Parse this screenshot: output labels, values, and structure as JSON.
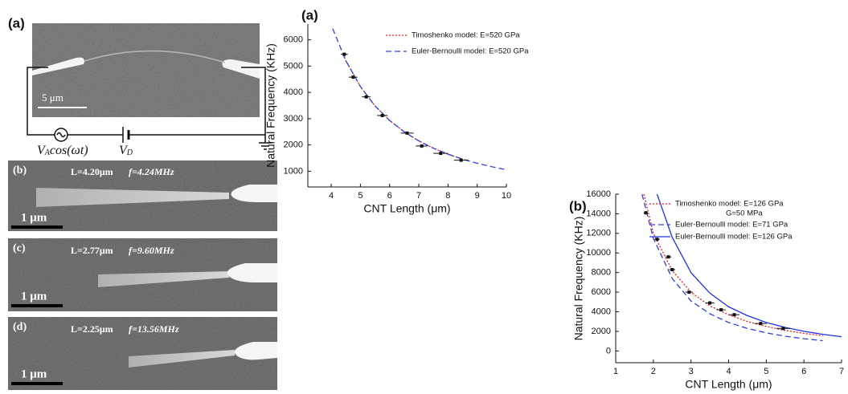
{
  "figure": {
    "a": {
      "label": "(a)",
      "scale": "5 μm",
      "ac_source": [
        "V",
        "A",
        "cos(ωt)"
      ],
      "dc_source": [
        "V",
        "D"
      ]
    },
    "b": {
      "label": "(b)",
      "length": "L=4.20μm",
      "freq": "f=4.24MHz",
      "scale": "1 μm"
    },
    "c": {
      "label": "(c)",
      "length": "L=2.77μm",
      "freq": "f=9.60MHz",
      "scale": "1 μm"
    },
    "d": {
      "label": "(d)",
      "length": "L=2.25μm",
      "freq": "f=13.56MHz",
      "scale": "1 μm"
    }
  },
  "chart_data": [
    {
      "type": "line",
      "label": "(a)",
      "xlabel": "CNT Length (μm)",
      "ylabel": "Natural Frequency (KHz)",
      "xlim": [
        3.2,
        10
      ],
      "ylim": [
        400,
        6600
      ],
      "xticks": [
        4,
        5,
        6,
        7,
        8,
        9,
        10
      ],
      "yticks": [
        1000,
        2000,
        3000,
        4000,
        5000,
        6000
      ],
      "legend": "top-right",
      "series": [
        {
          "name": "Timoshenko model: E=520 GPa",
          "color": "#e02020",
          "dash": "dotted",
          "x": [
            4.4,
            4.5,
            5,
            5.5,
            6,
            6.5,
            7,
            7.5,
            8,
            8.5
          ],
          "values": [
            5450,
            5210,
            4220,
            3488,
            2931,
            2497,
            2153,
            1876,
            1648,
            1460
          ]
        },
        {
          "name": "Euler-Bernoulli model: E=520 GPa",
          "color": "#3040e0",
          "dash": "dashed",
          "x": [
            4.05,
            4.5,
            5,
            5.5,
            6,
            6.5,
            7,
            7.5,
            8,
            8.5,
            9,
            9.5,
            10
          ],
          "values": [
            6430,
            5210,
            4220,
            3488,
            2931,
            2497,
            2153,
            1876,
            1648,
            1460,
            1302,
            1169,
            1055
          ]
        }
      ],
      "points": {
        "x": [
          4.45,
          4.75,
          5.2,
          5.75,
          6.6,
          7.1,
          7.75,
          8.45
        ],
        "values": [
          5450,
          4580,
          3830,
          3120,
          2450,
          1960,
          1680,
          1420
        ],
        "xerr": [
          0.12,
          0.15,
          0.15,
          0.18,
          0.22,
          0.2,
          0.25,
          0.25
        ]
      }
    },
    {
      "type": "line",
      "label": "(b)",
      "xlabel": "CNT Length (μm)",
      "ylabel": "Natural Frequency (KHz)",
      "xlim": [
        1,
        7
      ],
      "ylim": [
        -1200,
        16000
      ],
      "xticks": [
        1,
        2,
        3,
        4,
        5,
        6,
        7
      ],
      "yticks": [
        0,
        2000,
        4000,
        6000,
        8000,
        10000,
        12000,
        14000,
        16000
      ],
      "legend": "top-right",
      "legend_note": "G=50 MPa",
      "series": [
        {
          "name": "Timoshenko model: E=126 GPa",
          "color": "#e02020",
          "dash": "dotted",
          "x": [
            1.75,
            2,
            2.5,
            3,
            3.5,
            4,
            4.5,
            5,
            5.5,
            6,
            6.5
          ],
          "values": [
            16000,
            12000,
            8200,
            6000,
            4600,
            3700,
            3000,
            2500,
            2100,
            1800,
            1550
          ]
        },
        {
          "name": "Euler-Bernoulli model: E=71 GPa",
          "color": "#3040e0",
          "dash": "dashed",
          "x": [
            1.7,
            2,
            2.5,
            3,
            3.5,
            4,
            4.5,
            5,
            5.5,
            6,
            6.5
          ],
          "values": [
            16000,
            11500,
            7400,
            5100,
            3800,
            2900,
            2300,
            1850,
            1500,
            1250,
            1050
          ]
        },
        {
          "name": "Euler-Bernoulli model: E=126 GPa",
          "color": "#2030f0",
          "dash": "solid",
          "x": [
            2.1,
            2.5,
            3,
            3.5,
            4,
            4.5,
            5,
            5.5,
            6,
            6.5,
            7
          ],
          "values": [
            16000,
            11600,
            8000,
            5900,
            4500,
            3600,
            2900,
            2400,
            2000,
            1700,
            1450
          ]
        }
      ],
      "points": {
        "x": [
          1.8,
          2.1,
          2.4,
          2.5,
          2.95,
          3.5,
          3.8,
          4.15,
          4.85,
          5.45
        ],
        "values": [
          14100,
          11400,
          9600,
          8300,
          6000,
          4900,
          4200,
          3700,
          2800,
          2300
        ],
        "xerr": [
          0.06,
          0.07,
          0.08,
          0.08,
          0.1,
          0.12,
          0.12,
          0.14,
          0.16,
          0.18
        ]
      }
    }
  ]
}
